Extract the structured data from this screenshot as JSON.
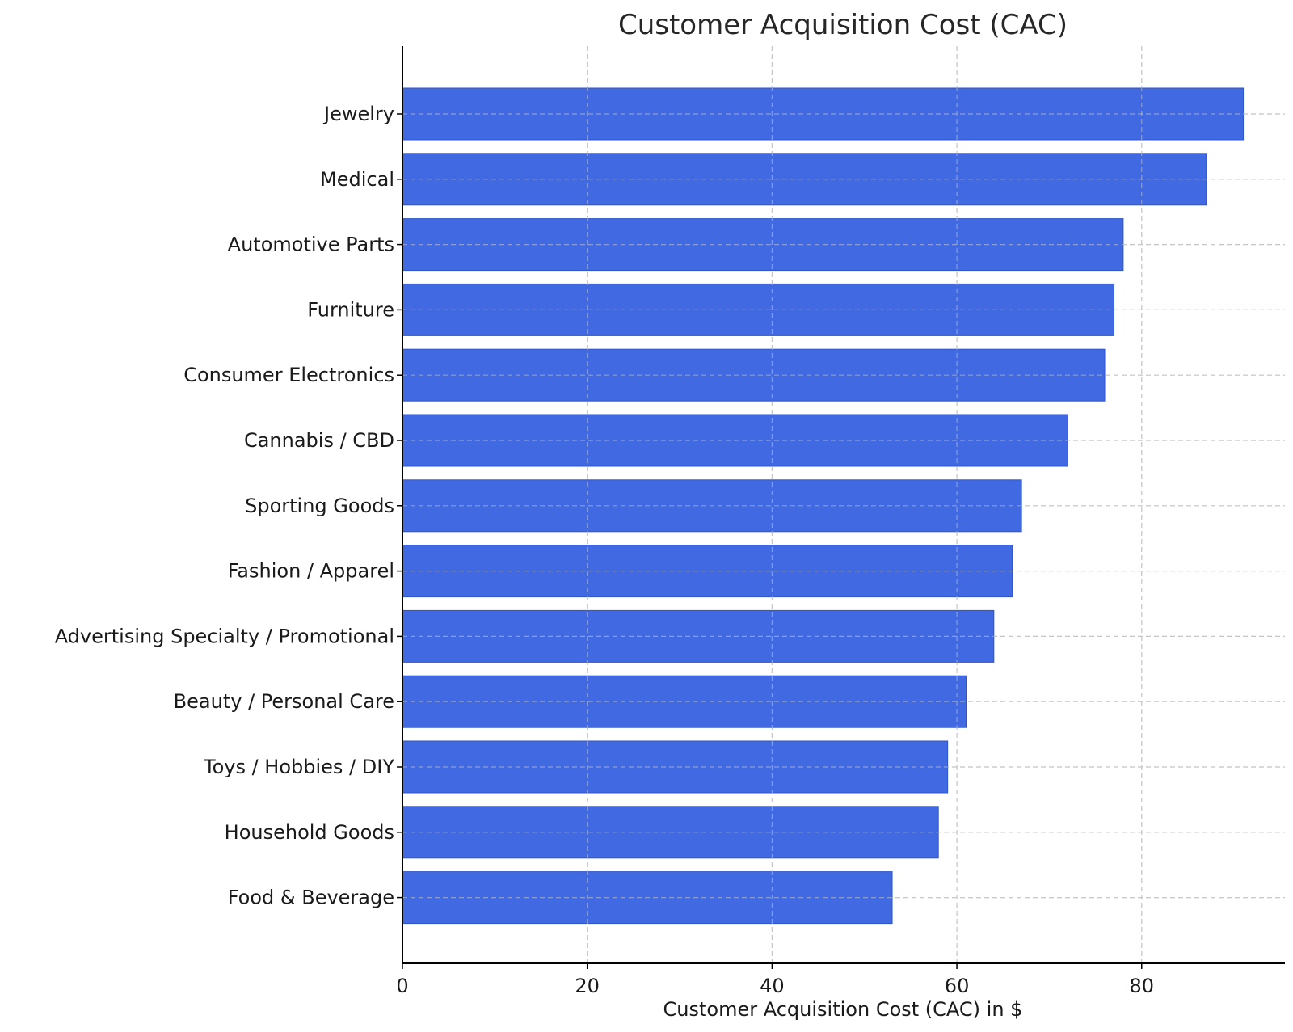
{
  "colors": {
    "bar": "#4169E1",
    "bar_edge": "#2f55c9",
    "grid": "#c8c8c8",
    "axis": "#000000",
    "background": "#ffffff"
  },
  "chart_data": {
    "type": "bar",
    "orientation": "horizontal",
    "title": "Customer Acquisition Cost (CAC)",
    "xlabel": "Customer Acquisition Cost (CAC) in $",
    "ylabel": "",
    "xlim": [
      0,
      95.5
    ],
    "xticks": [
      0,
      20,
      40,
      60,
      80
    ],
    "grid": true,
    "categories": [
      "Jewelry",
      "Medical",
      "Automotive Parts",
      "Furniture",
      "Consumer Electronics",
      "Cannabis / CBD",
      "Sporting Goods",
      "Fashion / Apparel",
      "Advertising Specialty / Promotional",
      "Beauty / Personal Care",
      "Toys / Hobbies / DIY",
      "Household Goods",
      "Food & Beverage"
    ],
    "values": [
      91,
      87,
      78,
      77,
      76,
      72,
      67,
      66,
      64,
      61,
      59,
      58,
      53
    ]
  }
}
